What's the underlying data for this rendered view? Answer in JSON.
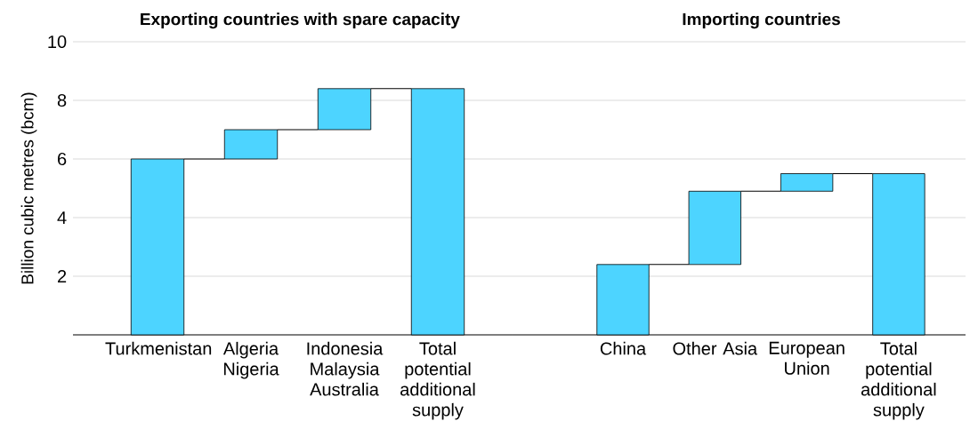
{
  "chart_data": [
    {
      "type": "bar",
      "title": "Exporting countries with spare capacity",
      "ylabel": "Billion cubic metres (bcm)",
      "categories": [
        "Turkmenistan",
        "Algeria Nigeria",
        "Indonesia Malaysia Australia",
        "Total potential additional supply"
      ],
      "values": [
        6.0,
        1.0,
        1.4,
        8.4
      ],
      "base": [
        0,
        6.0,
        7.0,
        0
      ],
      "color": "#4dd4ff",
      "ylim": [
        0,
        10
      ],
      "yticks": [
        2,
        4,
        6,
        8,
        10
      ],
      "grid": "y"
    },
    {
      "type": "bar",
      "title": "Importing countries",
      "categories": [
        "China",
        "Other Asia",
        "European Union",
        "Total potential additional supply"
      ],
      "values": [
        2.4,
        2.5,
        0.6,
        5.5
      ],
      "base": [
        0,
        2.4,
        4.9,
        0
      ],
      "color": "#4dd4ff",
      "ylim": [
        0,
        10
      ],
      "yticks": [
        2,
        4,
        6,
        8,
        10
      ],
      "grid": "y",
      "tick_labels": "x"
    }
  ]
}
